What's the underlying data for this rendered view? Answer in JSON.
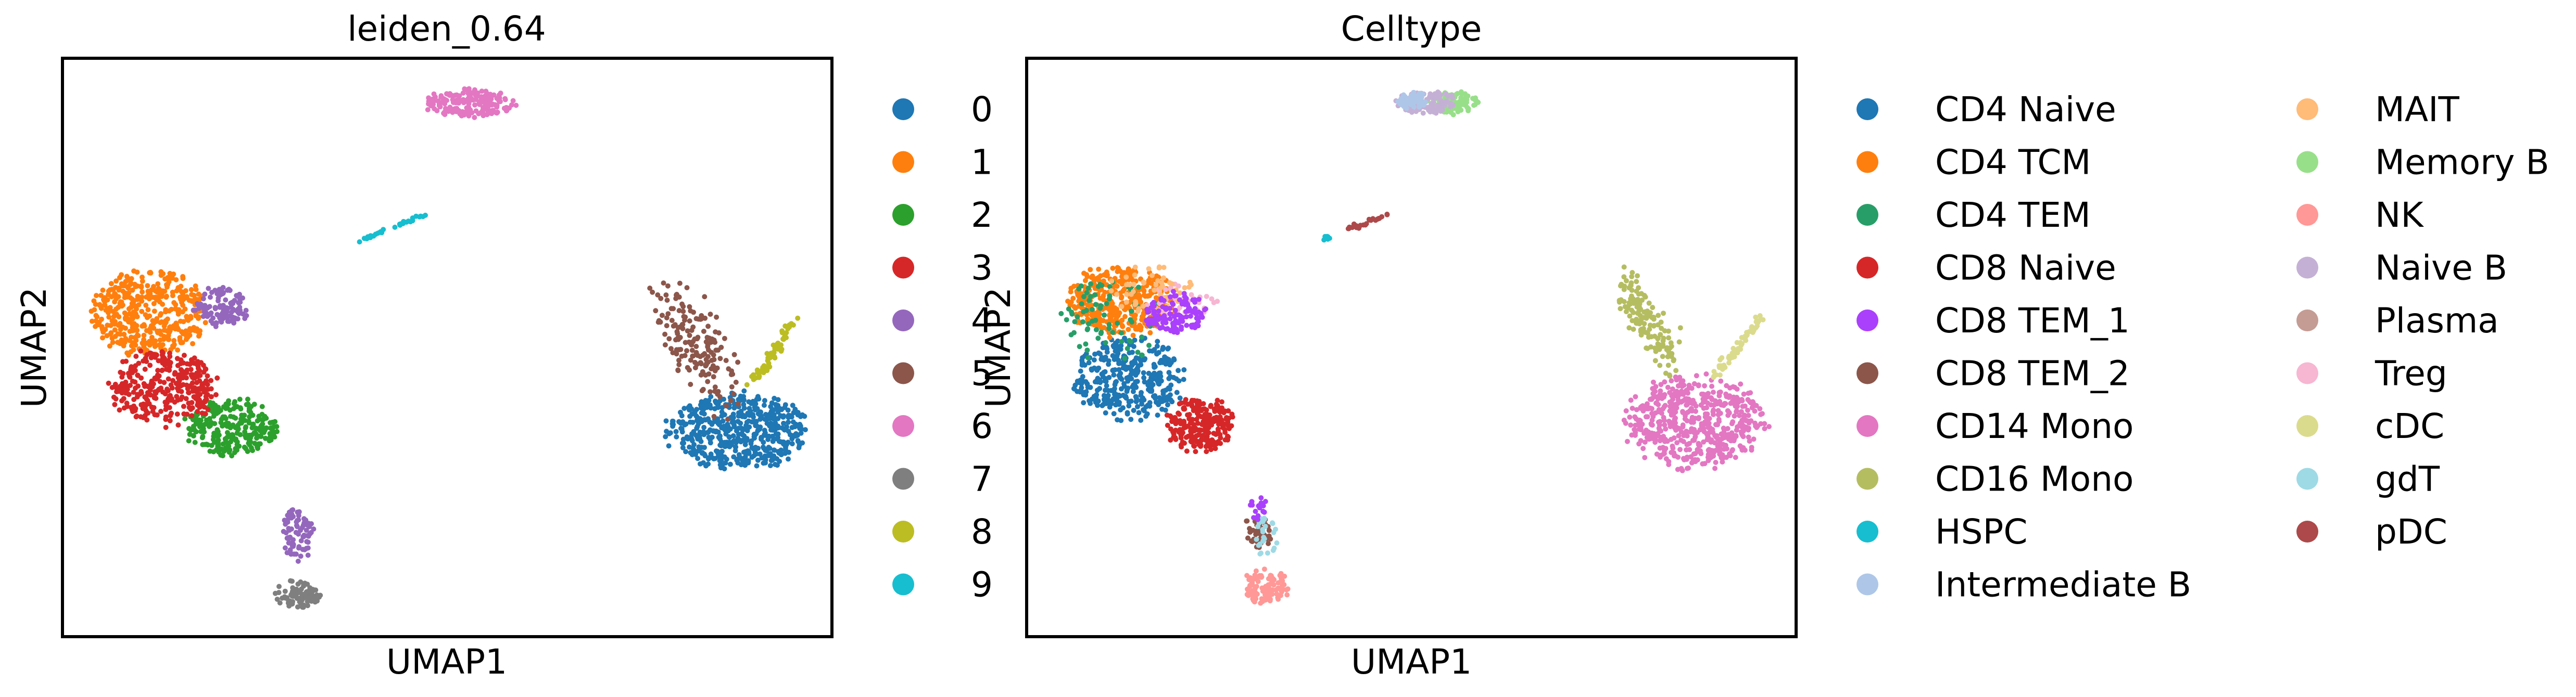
{
  "chart_data": [
    {
      "type": "scatter",
      "title": "leiden_0.64",
      "xlabel": "UMAP1",
      "ylabel": "UMAP2",
      "ticks": "none",
      "grid": false,
      "legend": {
        "placement": "right",
        "columns": 1,
        "entries": [
          {
            "label": "0",
            "color": "#1f77b4"
          },
          {
            "label": "1",
            "color": "#ff7f0e"
          },
          {
            "label": "2",
            "color": "#2ca02c"
          },
          {
            "label": "3",
            "color": "#d62728"
          },
          {
            "label": "4",
            "color": "#9467bd"
          },
          {
            "label": "5",
            "color": "#8c564b"
          },
          {
            "label": "6",
            "color": "#e377c2"
          },
          {
            "label": "7",
            "color": "#7f7f7f"
          },
          {
            "label": "8",
            "color": "#bcbd22"
          },
          {
            "label": "9",
            "color": "#17becf"
          }
        ]
      },
      "clusters": [
        {
          "label": "0",
          "color": "#1f77b4",
          "center": [
            0.88,
            0.355
          ],
          "spread": [
            0.09,
            0.065
          ],
          "n": 520,
          "shape": "ellipse"
        },
        {
          "label": "1",
          "color": "#ff7f0e",
          "center": [
            0.11,
            0.56
          ],
          "spread": [
            0.075,
            0.075
          ],
          "n": 420,
          "shape": "ellipse"
        },
        {
          "label": "2",
          "color": "#2ca02c",
          "center": [
            0.22,
            0.36
          ],
          "spread": [
            0.06,
            0.05
          ],
          "n": 260,
          "shape": "ellipse"
        },
        {
          "label": "3",
          "color": "#d62728",
          "center": [
            0.13,
            0.43
          ],
          "spread": [
            0.07,
            0.065
          ],
          "n": 320,
          "shape": "ellipse"
        },
        {
          "label": "4",
          "color": "#9467bd",
          "center": [
            0.205,
            0.57
          ],
          "spread": [
            0.035,
            0.035
          ],
          "n": 110,
          "shape": "ellipse"
        },
        {
          "label": "4",
          "color": "#9467bd",
          "center": [
            0.305,
            0.175
          ],
          "spread": [
            0.02,
            0.045
          ],
          "n": 80,
          "shape": "ellipse"
        },
        {
          "label": "5",
          "color": "#8c564b",
          "center": [
            0.81,
            0.53
          ],
          "spread": [
            0.04,
            0.1
          ],
          "n": 170,
          "shape": "streak",
          "from": [
            0.785,
            0.58
          ],
          "to": [
            0.865,
            0.44
          ]
        },
        {
          "label": "6",
          "color": "#e377c2",
          "center": [
            0.53,
            0.925
          ],
          "spread": [
            0.06,
            0.025
          ],
          "n": 170,
          "shape": "ellipse"
        },
        {
          "label": "7",
          "color": "#7f7f7f",
          "center": [
            0.305,
            0.07
          ],
          "spread": [
            0.03,
            0.025
          ],
          "n": 90,
          "shape": "ellipse"
        },
        {
          "label": "8",
          "color": "#bcbd22",
          "center": [
            0.935,
            0.5
          ],
          "spread": [
            0.01,
            0.01
          ],
          "n": 60,
          "shape": "streak",
          "from": [
            0.9,
            0.44
          ],
          "to": [
            0.955,
            0.55
          ]
        },
        {
          "label": "9",
          "color": "#17becf",
          "center": [
            0.42,
            0.705
          ],
          "spread": [
            0.005,
            0.005
          ],
          "n": 30,
          "shape": "streak",
          "from": [
            0.385,
            0.685
          ],
          "to": [
            0.47,
            0.73
          ]
        }
      ]
    },
    {
      "type": "scatter",
      "title": "Celltype",
      "xlabel": "UMAP1",
      "ylabel": "UMAP2",
      "ticks": "none",
      "grid": false,
      "legend": {
        "placement": "right",
        "columns": 2,
        "entries": [
          {
            "label": "CD4 Naive",
            "color": "#1f77b4"
          },
          {
            "label": "CD4 TCM",
            "color": "#ff7f0e"
          },
          {
            "label": "CD4 TEM",
            "color": "#279e68"
          },
          {
            "label": "CD8 Naive",
            "color": "#d62728"
          },
          {
            "label": "CD8 TEM_1",
            "color": "#aa40fc"
          },
          {
            "label": "CD8 TEM_2",
            "color": "#8c564b"
          },
          {
            "label": "CD14 Mono",
            "color": "#e377c2"
          },
          {
            "label": "CD16 Mono",
            "color": "#b5bd61"
          },
          {
            "label": "HSPC",
            "color": "#17becf"
          },
          {
            "label": "Intermediate B",
            "color": "#aec7e8"
          },
          {
            "label": "MAIT",
            "color": "#ffbb78"
          },
          {
            "label": "Memory B",
            "color": "#98df8a"
          },
          {
            "label": "NK",
            "color": "#ff9896"
          },
          {
            "label": "Naive B",
            "color": "#c5b0d5"
          },
          {
            "label": "Plasma",
            "color": "#c49c94"
          },
          {
            "label": "Treg",
            "color": "#f7b6d2"
          },
          {
            "label": "cDC",
            "color": "#dbdb8d"
          },
          {
            "label": "gdT",
            "color": "#9edae5"
          },
          {
            "label": "pDC",
            "color": "#ad494a"
          }
        ]
      },
      "clusters": [
        {
          "label": "CD14 Mono",
          "color": "#e377c2",
          "center": [
            0.87,
            0.37
          ],
          "spread": [
            0.09,
            0.08
          ],
          "n": 540,
          "shape": "ellipse"
        },
        {
          "label": "CD16 Mono",
          "color": "#b5bd61",
          "center": [
            0.81,
            0.56
          ],
          "spread": [
            0.025,
            0.05
          ],
          "n": 150,
          "shape": "streak",
          "from": [
            0.78,
            0.6
          ],
          "to": [
            0.84,
            0.48
          ]
        },
        {
          "label": "cDC",
          "color": "#dbdb8d",
          "center": [
            0.93,
            0.5
          ],
          "spread": [
            0.01,
            0.01
          ],
          "n": 60,
          "shape": "streak",
          "from": [
            0.895,
            0.45
          ],
          "to": [
            0.955,
            0.55
          ]
        },
        {
          "label": "CD4 Naive",
          "color": "#1f77b4",
          "center": [
            0.13,
            0.445
          ],
          "spread": [
            0.07,
            0.07
          ],
          "n": 360,
          "shape": "ellipse"
        },
        {
          "label": "CD4 TCM",
          "color": "#ff7f0e",
          "center": [
            0.12,
            0.58
          ],
          "spread": [
            0.07,
            0.06
          ],
          "n": 380,
          "shape": "ellipse"
        },
        {
          "label": "CD4 TEM",
          "color": "#279e68",
          "center": [
            0.11,
            0.55
          ],
          "spread": [
            0.07,
            0.07
          ],
          "n": 80,
          "shape": "ellipse"
        },
        {
          "label": "Treg",
          "color": "#f7b6d2",
          "center": [
            0.2,
            0.58
          ],
          "spread": [
            0.05,
            0.03
          ],
          "n": 40,
          "shape": "ellipse"
        },
        {
          "label": "MAIT",
          "color": "#ffbb78",
          "center": [
            0.16,
            0.6
          ],
          "spread": [
            0.06,
            0.04
          ],
          "n": 50,
          "shape": "ellipse"
        },
        {
          "label": "CD8 TEM_1",
          "color": "#aa40fc",
          "center": [
            0.19,
            0.56
          ],
          "spread": [
            0.04,
            0.035
          ],
          "n": 120,
          "shape": "ellipse"
        },
        {
          "label": "CD8 Naive",
          "color": "#d62728",
          "center": [
            0.225,
            0.365
          ],
          "spread": [
            0.045,
            0.045
          ],
          "n": 240,
          "shape": "ellipse"
        },
        {
          "label": "Memory B",
          "color": "#98df8a",
          "center": [
            0.555,
            0.925
          ],
          "spread": [
            0.035,
            0.02
          ],
          "n": 100,
          "shape": "ellipse"
        },
        {
          "label": "Naive B",
          "color": "#c5b0d5",
          "center": [
            0.52,
            0.925
          ],
          "spread": [
            0.04,
            0.02
          ],
          "n": 90,
          "shape": "ellipse"
        },
        {
          "label": "Intermediate B",
          "color": "#aec7e8",
          "center": [
            0.5,
            0.93
          ],
          "spread": [
            0.02,
            0.015
          ],
          "n": 50,
          "shape": "ellipse"
        },
        {
          "label": "pDC",
          "color": "#ad494a",
          "center": [
            0.44,
            0.72
          ],
          "spread": [
            0.005,
            0.005
          ],
          "n": 25,
          "shape": "streak",
          "from": [
            0.415,
            0.705
          ],
          "to": [
            0.47,
            0.73
          ]
        },
        {
          "label": "HSPC",
          "color": "#17becf",
          "center": [
            0.39,
            0.69
          ],
          "spread": [
            0.006,
            0.004
          ],
          "n": 8,
          "shape": "ellipse"
        },
        {
          "label": "NK",
          "color": "#ff9896",
          "center": [
            0.31,
            0.085
          ],
          "spread": [
            0.03,
            0.03
          ],
          "n": 110,
          "shape": "ellipse"
        },
        {
          "label": "CD8 TEM_2",
          "color": "#8c564b",
          "center": [
            0.3,
            0.18
          ],
          "spread": [
            0.018,
            0.03
          ],
          "n": 40,
          "shape": "ellipse"
        },
        {
          "label": "gdT",
          "color": "#9edae5",
          "center": [
            0.31,
            0.17
          ],
          "spread": [
            0.015,
            0.04
          ],
          "n": 25,
          "shape": "ellipse"
        },
        {
          "label": "CD8 TEM_1",
          "color": "#aa40fc",
          "center": [
            0.3,
            0.22
          ],
          "spread": [
            0.012,
            0.02
          ],
          "n": 20,
          "shape": "ellipse"
        }
      ]
    }
  ]
}
